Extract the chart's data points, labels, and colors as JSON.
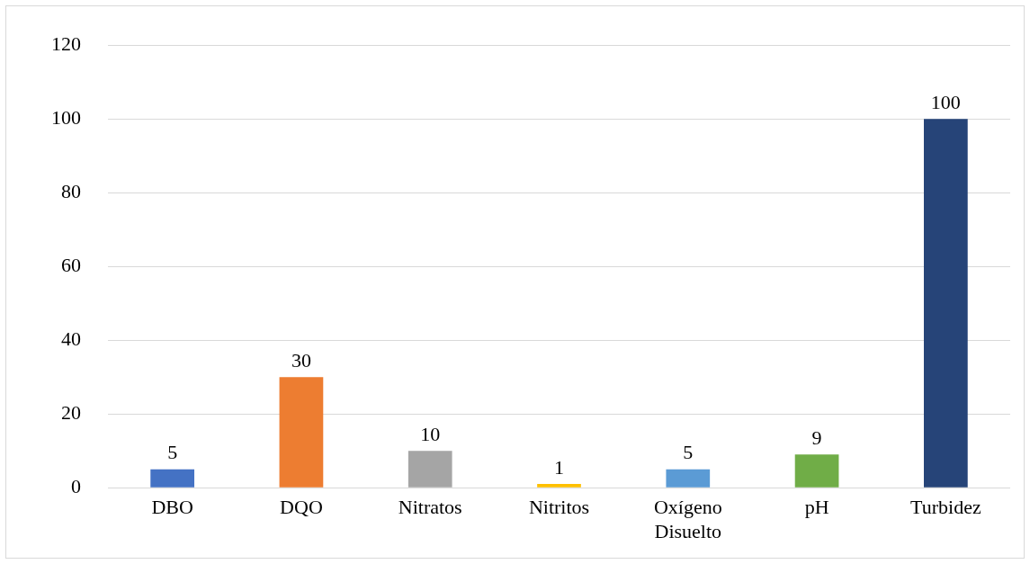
{
  "chart_data": {
    "type": "bar",
    "categories": [
      "DBO",
      "DQO",
      "Nitratos",
      "Nitritos",
      "Oxígeno Disuelto",
      "pH",
      "Turbidez"
    ],
    "values": [
      5,
      30,
      10,
      1,
      5,
      9,
      100
    ],
    "colors": [
      "#4472c4",
      "#ed7d31",
      "#a5a5a5",
      "#ffc000",
      "#5b9bd5",
      "#70ad47",
      "#264478"
    ],
    "ylim": [
      0,
      120
    ],
    "yticks": [
      0,
      20,
      40,
      60,
      80,
      100,
      120
    ],
    "grid": "y",
    "data_labels": true
  }
}
